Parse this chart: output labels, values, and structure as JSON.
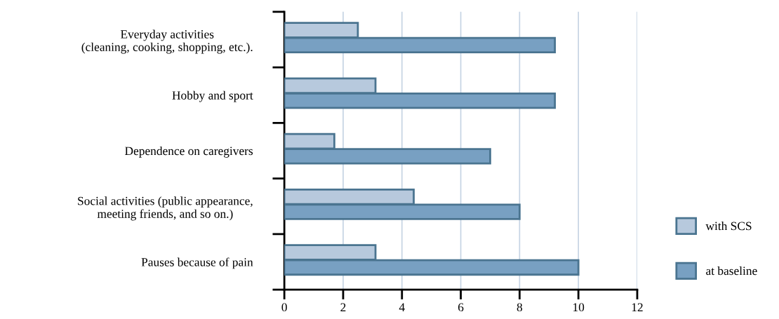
{
  "chart_data": {
    "type": "bar",
    "orientation": "horizontal",
    "categories": [
      "Everyday activities\n(cleaning, cooking, shopping, etc.).",
      "Hobby and sport",
      "Dependence on caregivers",
      "Social activities (public appearance,\nmeeting friends, and so on.)",
      "Pauses because of pain"
    ],
    "series": [
      {
        "name": "with SCS",
        "color": "#b7c9dd",
        "values": [
          2.5,
          3.1,
          1.7,
          4.4,
          3.1
        ]
      },
      {
        "name": "at baseline",
        "color": "#78a0c2",
        "values": [
          9.2,
          9.2,
          7.0,
          8.0,
          10.0
        ]
      }
    ],
    "xlim": [
      0,
      12
    ],
    "xticks": [
      0,
      2,
      4,
      6,
      8,
      10,
      12
    ],
    "grid": "x",
    "legend": "bottom right"
  }
}
